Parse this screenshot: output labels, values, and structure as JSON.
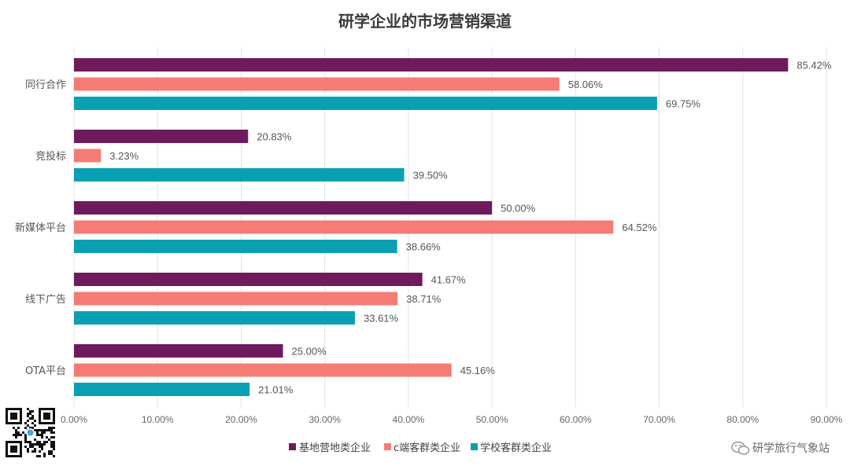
{
  "chart_data": {
    "type": "bar",
    "orientation": "horizontal",
    "title": "研学企业的市场营销渠道",
    "categories": [
      "同行合作",
      "竞投标",
      "新媒体平台",
      "线下广告",
      "OTA平台"
    ],
    "series": [
      {
        "name": "基地营地类企业",
        "color": "#701a5e",
        "values": [
          85.42,
          20.83,
          50.0,
          41.67,
          25.0
        ],
        "labels": [
          "85.42%",
          "20.83%",
          "50.00%",
          "41.67%",
          "25.00%"
        ]
      },
      {
        "name": "c端客群类企业",
        "color": "#f47c75",
        "values": [
          58.06,
          3.23,
          64.52,
          38.71,
          45.16
        ],
        "labels": [
          "58.06%",
          "3.23%",
          "64.52%",
          "38.71%",
          "45.16%"
        ]
      },
      {
        "name": "学校客群类企业",
        "color": "#0aa0b4",
        "values": [
          69.75,
          39.5,
          38.66,
          33.61,
          21.01
        ],
        "labels": [
          "69.75%",
          "39.50%",
          "38.66%",
          "33.61%",
          "21.01%"
        ]
      }
    ],
    "xlim": [
      0,
      90
    ],
    "xticks": [
      0,
      10,
      20,
      30,
      40,
      50,
      60,
      70,
      80,
      90
    ],
    "xtick_labels": [
      "0.00%",
      "10.00%",
      "20.00%",
      "30.00%",
      "40.00%",
      "50.00%",
      "60.00%",
      "70.00%",
      "80.00%",
      "90.00%"
    ],
    "grid": true,
    "legend_position": "bottom",
    "xlabel": "",
    "ylabel": ""
  },
  "watermark": {
    "text": "研学旅行气象站"
  },
  "qr_code": {
    "icon": "qr-code-icon"
  }
}
